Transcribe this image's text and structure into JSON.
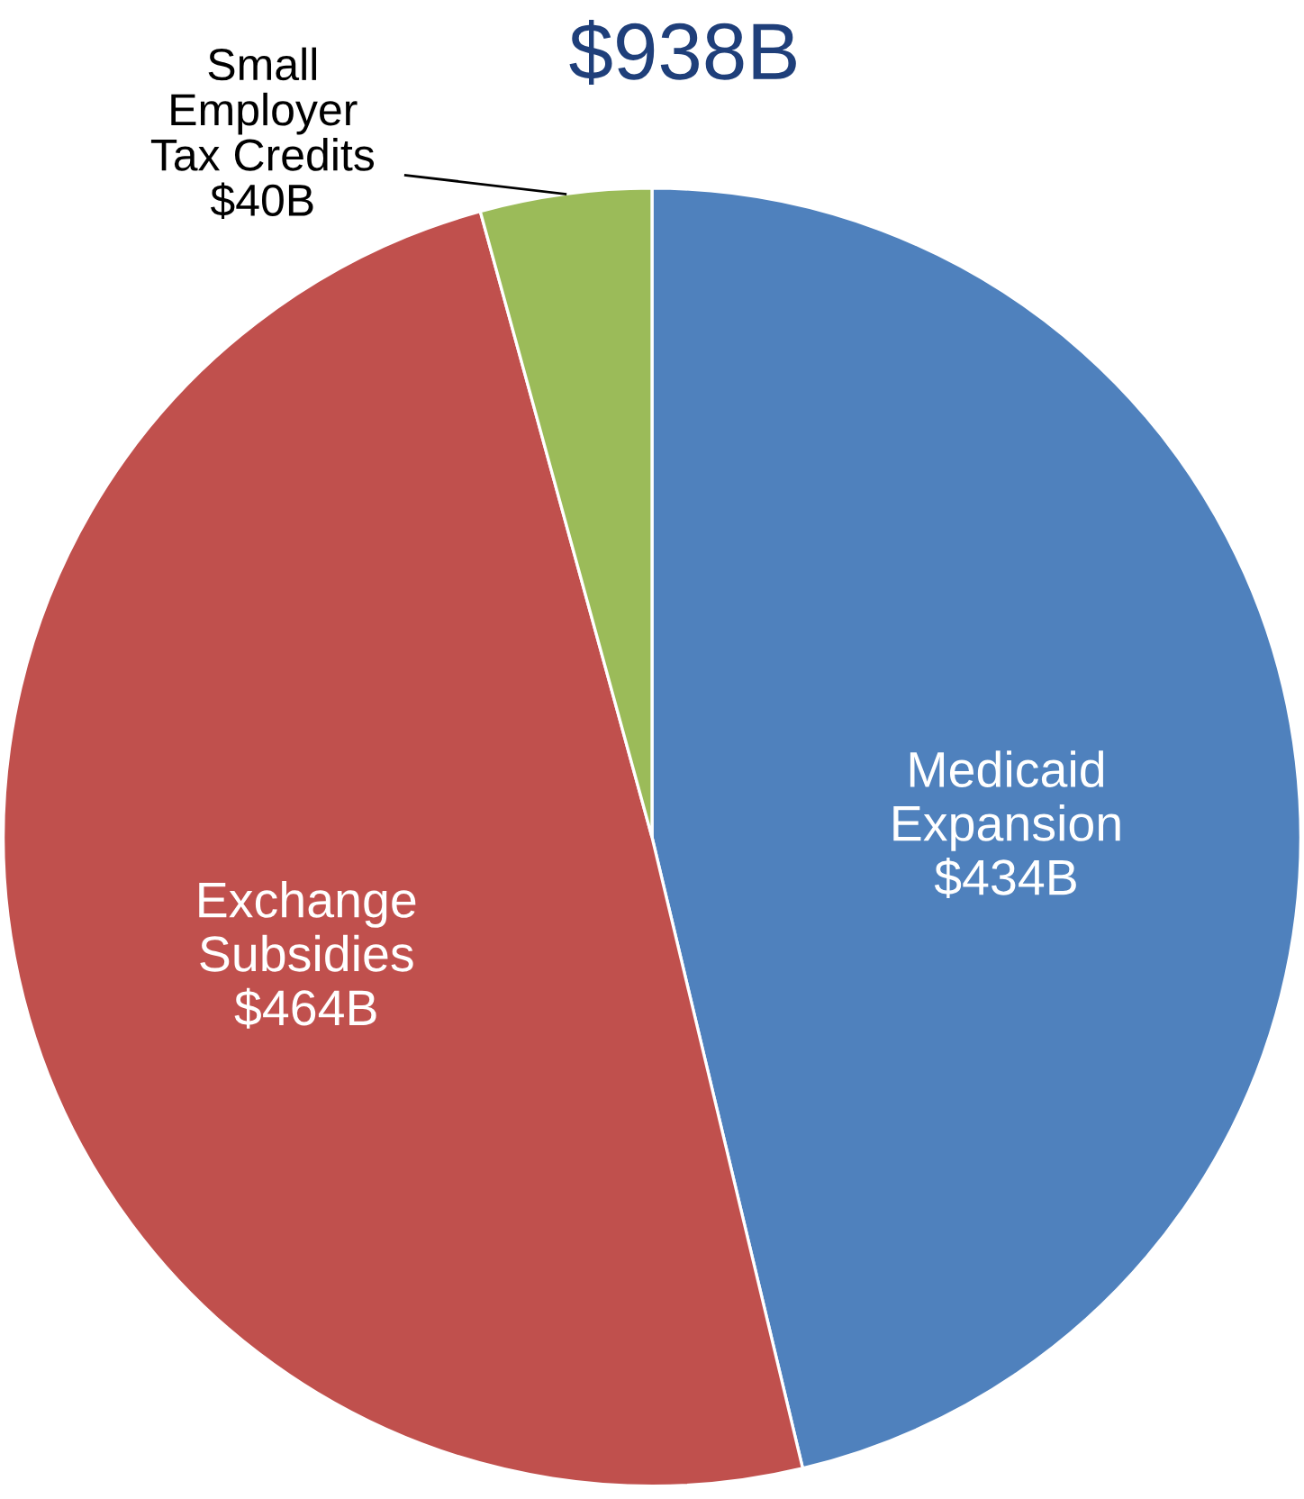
{
  "chart_data": {
    "type": "pie",
    "title": "$938B",
    "categories": [
      "Medicaid\nExpansion",
      "Exchange\nSubsidies",
      "Small\nEmployer\nTax Credits"
    ],
    "values": [
      434,
      464,
      40
    ],
    "value_labels": [
      "$434B",
      "$464B",
      "$40B"
    ],
    "colors": [
      "#4f81bd",
      "#c0504d",
      "#9bbb59"
    ]
  }
}
